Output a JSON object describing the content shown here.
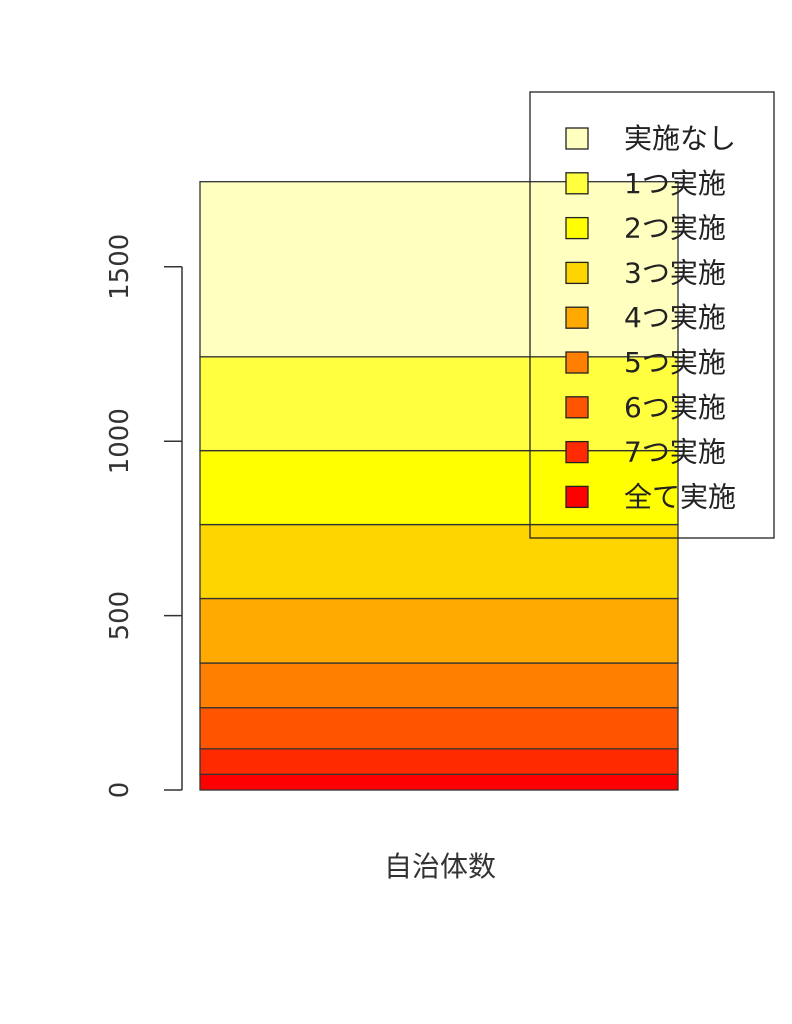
{
  "chart_data": {
    "type": "bar",
    "stacked": true,
    "orientation": "vertical",
    "categories": [
      ""
    ],
    "xlabel": "自治体数",
    "ylabel": "",
    "ylim": [
      0,
      1800
    ],
    "yticks": [
      0,
      500,
      1000,
      1500
    ],
    "grid": false,
    "legend_position": "top-right",
    "series": [
      {
        "name": "全て実施",
        "value": 45,
        "color": "#ff0000"
      },
      {
        "name": "7つ実施",
        "value": 73,
        "color": "#ff2a00"
      },
      {
        "name": "6つ実施",
        "value": 118,
        "color": "#ff5500"
      },
      {
        "name": "5つ実施",
        "value": 128,
        "color": "#ff8000"
      },
      {
        "name": "4つ実施",
        "value": 185,
        "color": "#ffaa00"
      },
      {
        "name": "3つ実施",
        "value": 212,
        "color": "#ffd500"
      },
      {
        "name": "2つ実施",
        "value": 212,
        "color": "#ffff00"
      },
      {
        "name": "1つ実施",
        "value": 269,
        "color": "#ffff40"
      },
      {
        "name": "実施なし",
        "value": 502,
        "color": "#ffffbf"
      }
    ],
    "legend_order": [
      "実施なし",
      "1つ実施",
      "2つ実施",
      "3つ実施",
      "4つ実施",
      "5つ実施",
      "6つ実施",
      "7つ実施",
      "全て実施"
    ]
  }
}
